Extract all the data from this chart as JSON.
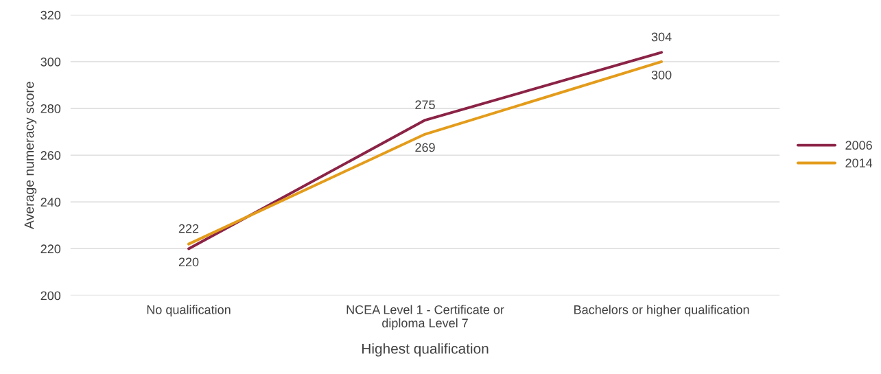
{
  "chart_data": {
    "type": "line",
    "xlabel": "Highest qualification",
    "ylabel": "Average numeracy score",
    "categories": [
      "No qualification",
      "NCEA Level 1 - Certificate or\ndiploma Level 7",
      "Bachelors or higher qualification"
    ],
    "series": [
      {
        "name": "2006",
        "color": "#8b2346",
        "values": [
          220,
          275,
          304
        ]
      },
      {
        "name": "2014",
        "color": "#e39c1b",
        "values": [
          222,
          269,
          300
        ]
      }
    ],
    "ylim": [
      200,
      320
    ],
    "yticks": [
      200,
      220,
      240,
      260,
      280,
      300,
      320
    ],
    "grid": "y",
    "legend": "right",
    "data_labels": true,
    "marker": "none",
    "line_style": "solid"
  }
}
